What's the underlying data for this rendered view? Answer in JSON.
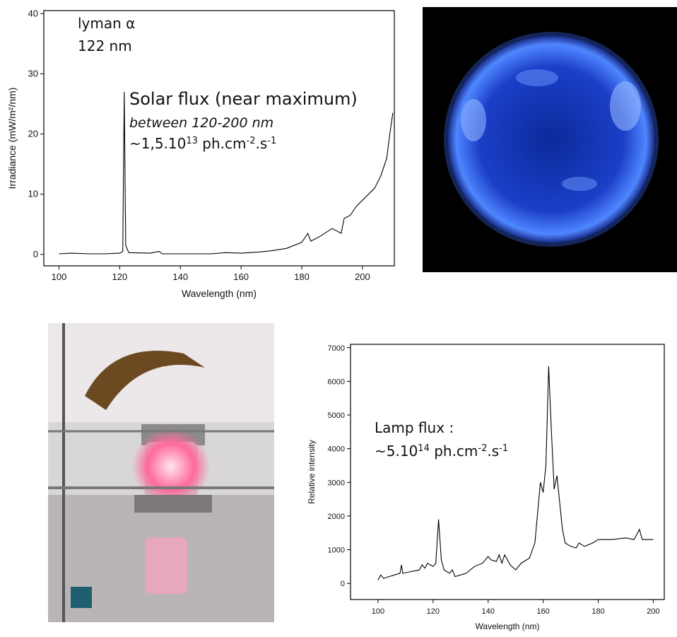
{
  "chart_data": [
    {
      "type": "line",
      "x": [
        100,
        104,
        110,
        115,
        120,
        121,
        121.5,
        122,
        123,
        130,
        133,
        134,
        140,
        150,
        155,
        160,
        166,
        170,
        175,
        180,
        182,
        183,
        186,
        190,
        193,
        194,
        196,
        198,
        200,
        202,
        204,
        206,
        208,
        209,
        210
      ],
      "values": [
        0.1,
        0.2,
        0.1,
        0.1,
        0.2,
        0.5,
        27,
        1.5,
        0.3,
        0.2,
        0.5,
        0.1,
        0.1,
        0.1,
        0.3,
        0.2,
        0.4,
        0.6,
        1,
        2,
        3.5,
        2.2,
        3,
        4.3,
        3.5,
        6,
        6.5,
        8,
        9,
        10,
        11,
        13,
        16,
        20,
        23.5
      ],
      "color": "#000000",
      "xlim": [
        95,
        210.5
      ],
      "ylim": [
        -1.9,
        40.5
      ],
      "xticks": [
        100,
        120,
        140,
        160,
        180,
        200
      ],
      "yticks": [
        0,
        10,
        20,
        30,
        40
      ],
      "xlabel": "Wavelength (nm)",
      "ylabel": "Irradiance (mW/m²/nm)",
      "annotations": [
        "lyman α",
        "122 nm",
        "Solar flux (near maximum)",
        "between 120-200 nm"
      ],
      "flux_note": [
        "~1,5.10",
        "13",
        " ph.cm",
        "-2",
        ".s",
        "-1"
      ]
    },
    {
      "type": "line",
      "x": [
        100,
        101,
        102,
        104,
        106,
        108,
        108.5,
        109,
        112,
        115,
        116,
        117,
        118,
        120,
        121,
        122,
        123,
        124,
        126,
        127,
        128,
        130,
        132,
        135,
        138,
        140,
        141,
        143,
        144,
        145,
        146,
        148,
        150,
        152,
        155,
        157,
        158,
        159,
        160,
        161,
        162,
        163,
        164,
        165,
        166,
        167,
        168,
        170,
        172,
        173,
        175,
        178,
        180,
        185,
        190,
        193,
        195,
        196,
        200
      ],
      "values": [
        100,
        250,
        150,
        200,
        250,
        300,
        550,
        300,
        350,
        400,
        550,
        450,
        600,
        500,
        600,
        1900,
        700,
        400,
        300,
        400,
        200,
        250,
        300,
        500,
        600,
        800,
        700,
        650,
        850,
        600,
        850,
        550,
        400,
        600,
        750,
        1200,
        2100,
        3000,
        2700,
        3500,
        6450,
        4500,
        2800,
        3200,
        2400,
        1600,
        1200,
        1100,
        1050,
        1200,
        1100,
        1200,
        1300,
        1300,
        1350,
        1300,
        1600,
        1300,
        1300
      ],
      "color": "#000000",
      "xlim": [
        90,
        204
      ],
      "ylim": [
        -480,
        7100
      ],
      "xticks": [
        100,
        120,
        140,
        160,
        180,
        200
      ],
      "yticks": [
        0,
        1000,
        2000,
        3000,
        4000,
        5000,
        6000,
        7000
      ],
      "xlabel": "Wavelength (nm)",
      "ylabel": "Relative intensity",
      "annotations": [
        "Lamp flux :"
      ],
      "flux_note": [
        "~5.10",
        "14",
        " ph.cm",
        "-2",
        ".s",
        "-1"
      ]
    }
  ]
}
